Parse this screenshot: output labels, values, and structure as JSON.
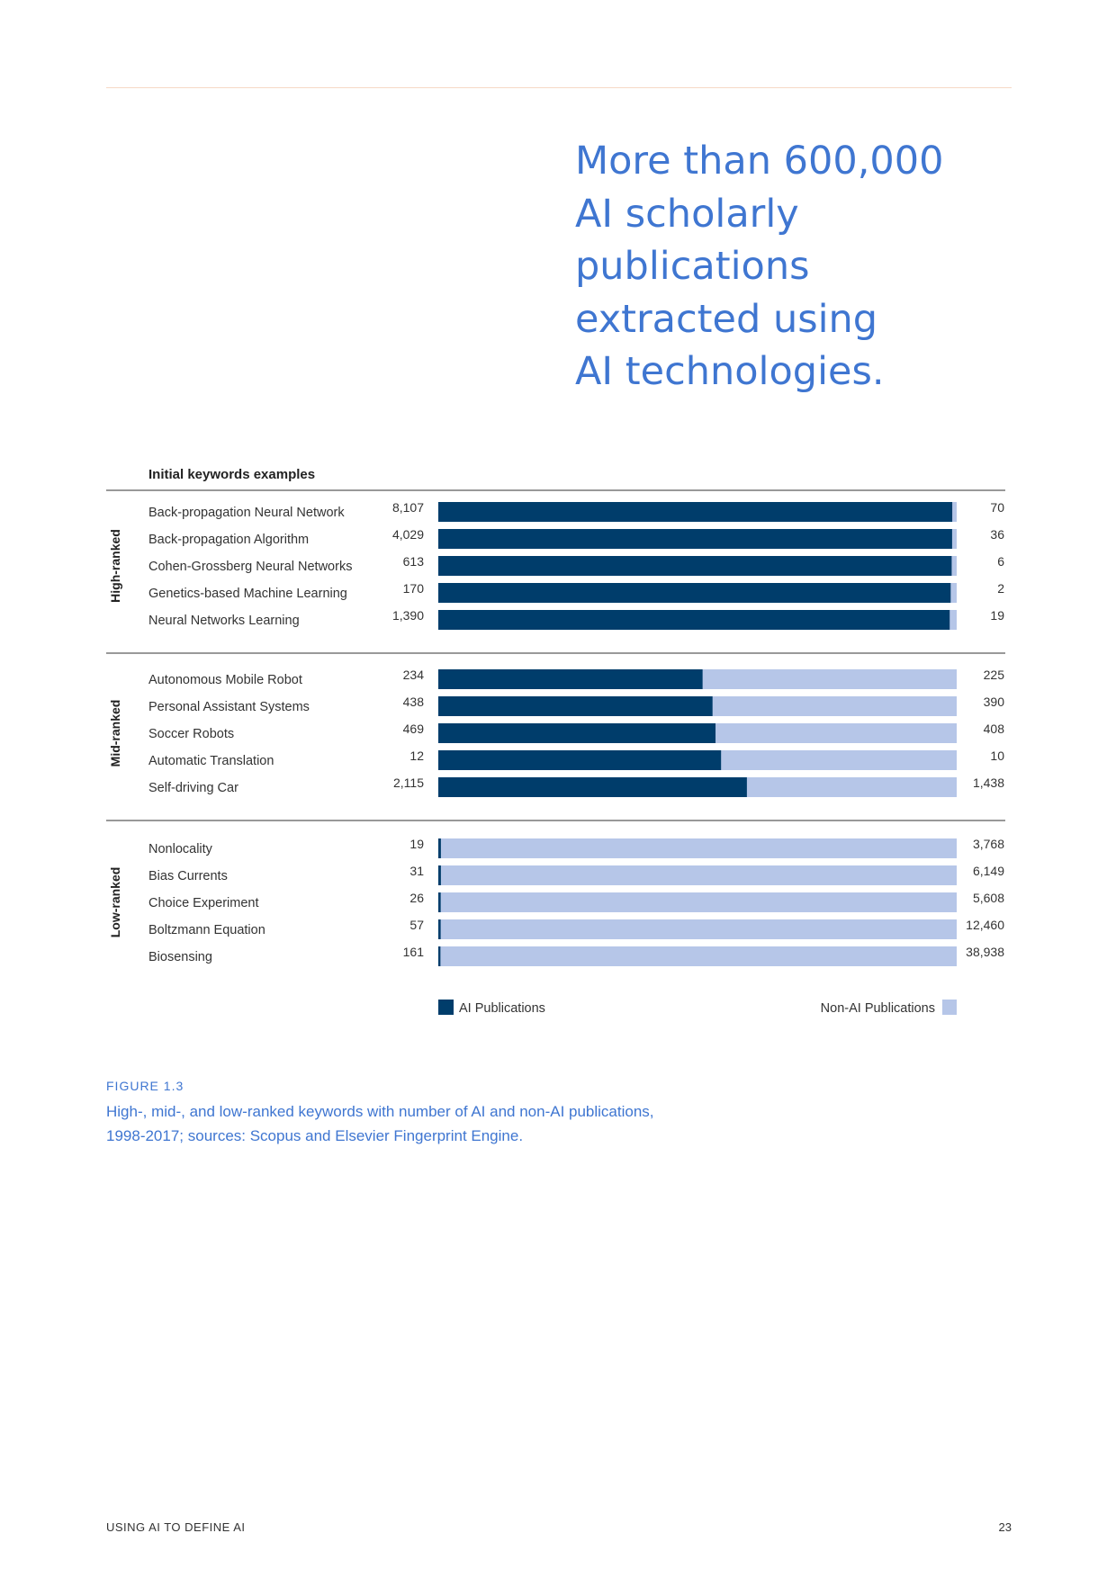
{
  "pull_quote": {
    "lines": [
      "More than 600,000",
      "AI scholarly",
      "publications",
      "extracted using",
      "AI technologies."
    ]
  },
  "chart_data": {
    "type": "bar",
    "stacked": true,
    "normalized": true,
    "header": "Initial keywords examples",
    "groups": [
      {
        "label": "High-ranked",
        "rows": [
          {
            "keyword": "Back-propagation Neural Network",
            "ai": 8107,
            "ai_label": "8,107",
            "non_ai": 70,
            "non_ai_label": "70"
          },
          {
            "keyword": "Back-propagation Algorithm",
            "ai": 4029,
            "ai_label": "4,029",
            "non_ai": 36,
            "non_ai_label": "36"
          },
          {
            "keyword": "Cohen-Grossberg Neural Networks",
            "ai": 613,
            "ai_label": "613",
            "non_ai": 6,
            "non_ai_label": "6"
          },
          {
            "keyword": "Genetics-based Machine Learning",
            "ai": 170,
            "ai_label": "170",
            "non_ai": 2,
            "non_ai_label": "2"
          },
          {
            "keyword": "Neural Networks Learning",
            "ai": 1390,
            "ai_label": "1,390",
            "non_ai": 19,
            "non_ai_label": "19"
          }
        ]
      },
      {
        "label": "Mid-ranked",
        "rows": [
          {
            "keyword": "Autonomous Mobile Robot",
            "ai": 234,
            "ai_label": "234",
            "non_ai": 225,
            "non_ai_label": "225"
          },
          {
            "keyword": "Personal Assistant Systems",
            "ai": 438,
            "ai_label": "438",
            "non_ai": 390,
            "non_ai_label": "390"
          },
          {
            "keyword": "Soccer Robots",
            "ai": 469,
            "ai_label": "469",
            "non_ai": 408,
            "non_ai_label": "408"
          },
          {
            "keyword": "Automatic Translation",
            "ai": 12,
            "ai_label": "12",
            "non_ai": 10,
            "non_ai_label": "10"
          },
          {
            "keyword": "Self-driving Car",
            "ai": 2115,
            "ai_label": "2,115",
            "non_ai": 1438,
            "non_ai_label": "1,438"
          }
        ]
      },
      {
        "label": "Low-ranked",
        "rows": [
          {
            "keyword": "Nonlocality",
            "ai": 19,
            "ai_label": "19",
            "non_ai": 3768,
            "non_ai_label": "3,768"
          },
          {
            "keyword": "Bias Currents",
            "ai": 31,
            "ai_label": "31",
            "non_ai": 6149,
            "non_ai_label": "6,149"
          },
          {
            "keyword": "Choice Experiment",
            "ai": 26,
            "ai_label": "26",
            "non_ai": 5608,
            "non_ai_label": "5,608"
          },
          {
            "keyword": "Boltzmann Equation",
            "ai": 57,
            "ai_label": "57",
            "non_ai": 12460,
            "non_ai_label": "12,460"
          },
          {
            "keyword": "Biosensing",
            "ai": 161,
            "ai_label": "161",
            "non_ai": 38938,
            "non_ai_label": "38,938"
          }
        ]
      }
    ],
    "legend": {
      "ai": "AI Publications",
      "non_ai": "Non-AI Publications"
    },
    "colors": {
      "ai": "#003d6b",
      "non_ai": "#b6c6e8"
    }
  },
  "figure": {
    "label": "FIGURE 1.3",
    "caption": "High-, mid-, and low-ranked keywords with number of AI and non-AI publications, 1998-2017; sources: Scopus and Elsevier Fingerprint Engine."
  },
  "footer": {
    "left": "USING AI TO DEFINE AI",
    "page_number": "23"
  }
}
